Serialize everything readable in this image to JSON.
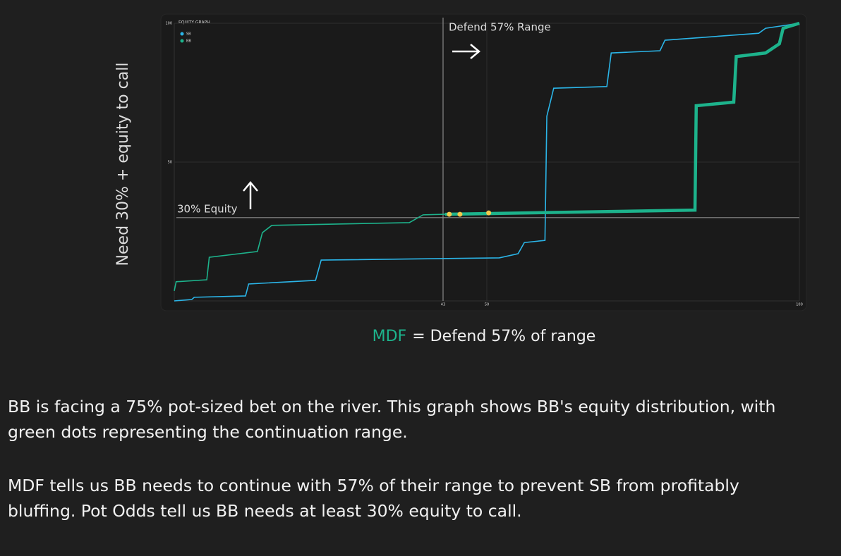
{
  "chart_data": {
    "type": "line",
    "title": "EQUITY GRAPH",
    "y_label": "Need 30% + equity to call",
    "xlim": [
      0,
      100
    ],
    "ylim": [
      0,
      100
    ],
    "xticks": [
      43,
      50,
      100
    ],
    "yticks": [
      50,
      100
    ],
    "grid": true,
    "legend": "top-left",
    "series": [
      {
        "name": "SB",
        "color": "#2bb5e8",
        "x": [
          0,
          2.8,
          3.2,
          11.4,
          11.9,
          22.6,
          23.5,
          52,
          55,
          56,
          59.3,
          59.6,
          60.7,
          69.2,
          69.9,
          77.7,
          78.5,
          93.5,
          94.6,
          100
        ],
        "values": [
          0,
          0.5,
          1.3,
          1.8,
          6.1,
          7.4,
          14.7,
          15.5,
          17,
          21,
          21.8,
          66.5,
          76.6,
          77.2,
          89.3,
          90.1,
          93.9,
          96.4,
          98.2,
          100
        ]
      },
      {
        "name": "BB",
        "color": "#1db38c",
        "x": [
          0,
          0.3,
          5.2,
          5.6,
          13.3,
          14.1,
          15.6,
          37.6,
          39.8,
          43.3,
          83.3,
          83.5,
          89.5,
          89.9,
          94.6,
          96.8,
          97.4,
          100
        ],
        "values": [
          3.6,
          6.9,
          7.6,
          15.7,
          17.8,
          24.6,
          27.2,
          28.2,
          31,
          31.2,
          32.7,
          70.3,
          71.6,
          88,
          89.3,
          92.6,
          98.2,
          100
        ]
      }
    ],
    "markers": {
      "color": "#f2c94c",
      "x": [
        44,
        45.7,
        50.3
      ],
      "values": [
        31.2,
        31.2,
        31.7
      ]
    },
    "annotations": [
      {
        "text": "30% Equity",
        "y": 30
      },
      {
        "text": "Defend 57% Range",
        "x": 43
      }
    ],
    "caption": {
      "highlight": "MDF",
      "text": "= Defend 57% of range"
    }
  },
  "paragraphs": [
    "BB is facing a 75% pot-sized bet on the river. This graph shows BB's equity distribution, with green dots representing the continuation range.",
    "MDF tells us BB needs to continue with 57% of their range to prevent SB from profitably bluffing. Pot Odds tell us BB needs at least 30% equity to call."
  ]
}
